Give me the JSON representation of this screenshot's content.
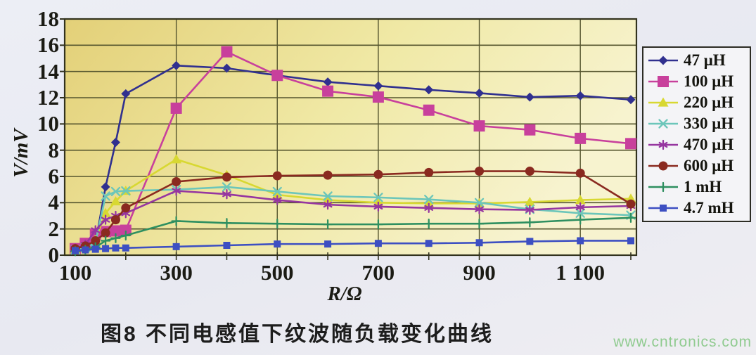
{
  "figure": {
    "title": "图8  不同电感值下纹波随负载变化曲线",
    "watermark": "www.cntronics.com"
  },
  "chart_data": {
    "type": "line",
    "title": "图8  不同电感值下纹波随负载变化曲线",
    "xlabel": "R/Ω",
    "ylabel": "V/mV",
    "xlim": [
      100,
      1200
    ],
    "ylim": [
      0,
      18
    ],
    "grid": true,
    "legend_position": "right",
    "x_ticks": [
      100,
      300,
      500,
      700,
      900,
      1100
    ],
    "x_tick_labels": [
      "100",
      "300",
      "500",
      "700",
      "900",
      "1 100"
    ],
    "y_ticks": [
      0,
      2,
      4,
      6,
      8,
      10,
      12,
      14,
      16,
      18
    ],
    "x": [
      100,
      120,
      140,
      160,
      180,
      200,
      300,
      400,
      500,
      600,
      700,
      800,
      900,
      1000,
      1100,
      1200
    ],
    "series": [
      {
        "name": "47 μH",
        "color": "#30308f",
        "marker": "diamond",
        "values": [
          0.45,
          0.55,
          0.9,
          5.2,
          8.6,
          12.3,
          14.45,
          14.25,
          13.7,
          13.2,
          12.9,
          12.6,
          12.35,
          12.05,
          12.15,
          11.85
        ]
      },
      {
        "name": "100 μH",
        "color": "#c8409c",
        "marker": "square",
        "values": [
          0.5,
          0.9,
          1.6,
          1.8,
          1.85,
          1.9,
          11.2,
          15.5,
          13.7,
          12.5,
          12.05,
          11.05,
          9.85,
          9.55,
          8.9,
          8.5
        ]
      },
      {
        "name": "220 μH",
        "color": "#d8d832",
        "marker": "triangle",
        "values": [
          0.4,
          0.6,
          1.2,
          3.2,
          4.1,
          4.9,
          7.3,
          6.1,
          4.6,
          4.2,
          4.0,
          3.95,
          3.95,
          4.05,
          4.2,
          4.3
        ]
      },
      {
        "name": "330 μH",
        "color": "#6cc6ba",
        "marker": "x",
        "values": [
          0.4,
          0.6,
          1.0,
          4.5,
          4.85,
          4.9,
          5.0,
          5.2,
          4.85,
          4.5,
          4.4,
          4.25,
          4.0,
          3.5,
          3.2,
          3.05
        ]
      },
      {
        "name": "470 μH",
        "color": "#9636a0",
        "marker": "star",
        "values": [
          0.5,
          0.8,
          1.9,
          2.7,
          3.0,
          3.2,
          4.9,
          4.65,
          4.2,
          3.85,
          3.7,
          3.6,
          3.5,
          3.45,
          3.65,
          3.75
        ]
      },
      {
        "name": "600 μH",
        "color": "#8a2a20",
        "marker": "circle",
        "values": [
          0.5,
          0.7,
          1.1,
          1.7,
          2.7,
          3.6,
          5.6,
          5.95,
          6.05,
          6.1,
          6.15,
          6.3,
          6.4,
          6.4,
          6.25,
          3.9
        ]
      },
      {
        "name": "1 mH",
        "color": "#2e8f60",
        "marker": "plus",
        "values": [
          0.3,
          0.4,
          0.6,
          1.1,
          1.3,
          1.5,
          2.6,
          2.45,
          2.4,
          2.35,
          2.35,
          2.4,
          2.4,
          2.5,
          2.7,
          2.85
        ]
      },
      {
        "name": "4.7 mH",
        "color": "#3d4fc2",
        "marker": "square_small",
        "values": [
          0.35,
          0.4,
          0.45,
          0.5,
          0.55,
          0.55,
          0.65,
          0.75,
          0.85,
          0.85,
          0.9,
          0.9,
          0.95,
          1.05,
          1.1,
          1.1
        ]
      }
    ],
    "style": {
      "plot_bg_left": "#e3d078",
      "plot_bg_mid": "#f0e9a6",
      "plot_bg_right": "#f7f3cf",
      "grid_color": "#55552e",
      "border_color": "#32321e",
      "text_color": "#1b1b14",
      "watermark_color": "#90cb90"
    }
  }
}
